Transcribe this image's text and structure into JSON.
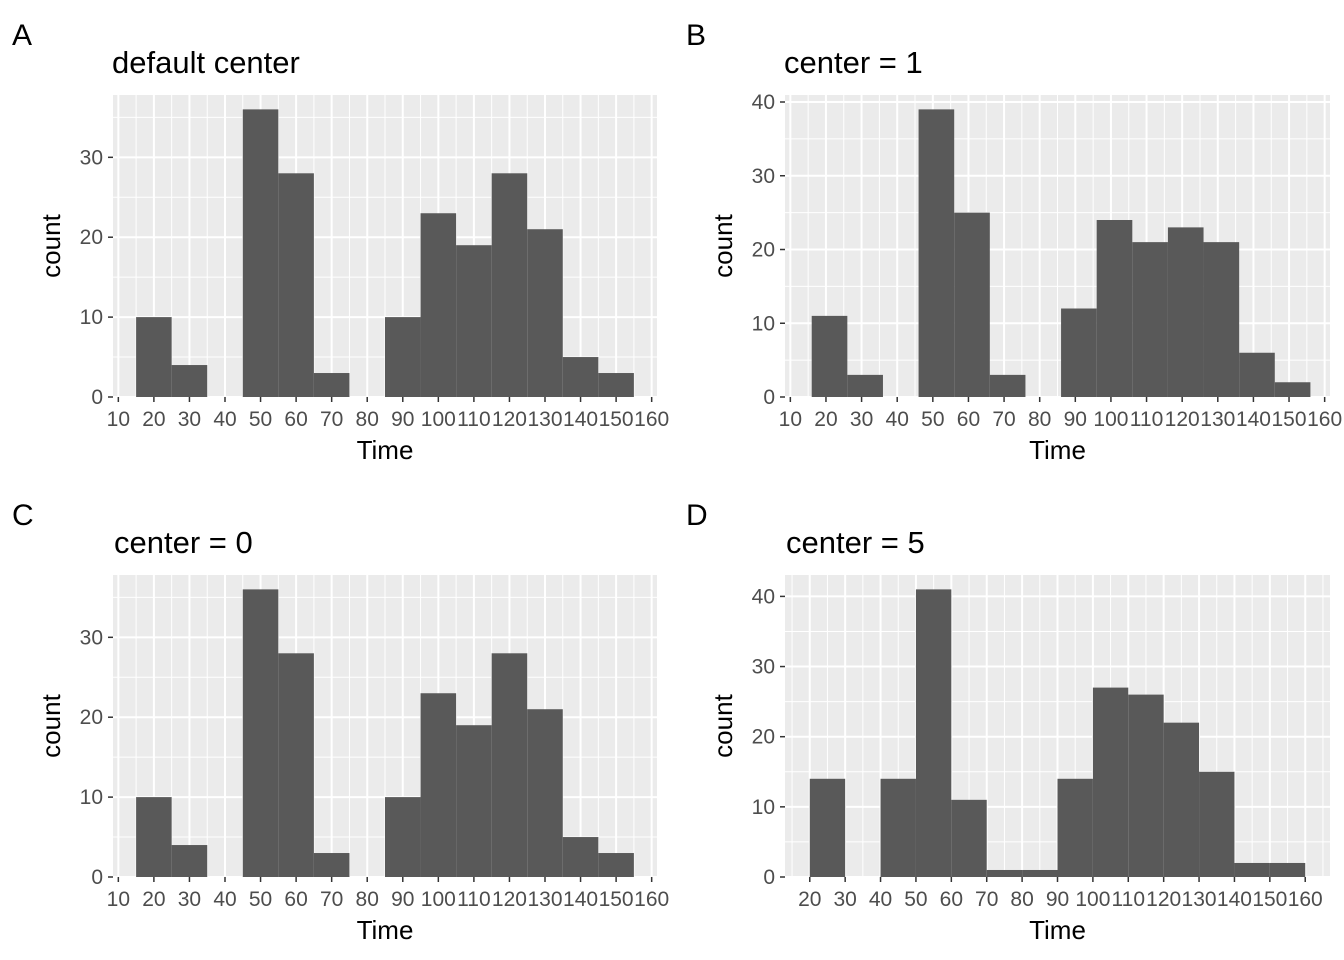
{
  "figure": {
    "panels": [
      {
        "tag": "A",
        "title": "default center"
      },
      {
        "tag": "B",
        "title": "center = 1"
      },
      {
        "tag": "C",
        "title": "center = 0"
      },
      {
        "tag": "D",
        "title": "center = 5"
      }
    ]
  },
  "colors": {
    "panel_background": "#ebebeb",
    "grid": "#ffffff",
    "bar_fill": "#595959",
    "tick_text": "#4d4d4d",
    "tick_mark": "#333333"
  },
  "chart_data": [
    {
      "type": "bar",
      "tag": "A",
      "title": "default center",
      "xlabel": "Time",
      "ylabel": "count",
      "xlim": [
        8.5,
        161.5
      ],
      "ylim": [
        0,
        37.8
      ],
      "x_ticks": [
        10,
        20,
        30,
        40,
        50,
        60,
        70,
        80,
        90,
        100,
        110,
        120,
        130,
        140,
        150,
        160
      ],
      "y_ticks": [
        0,
        10,
        20,
        30
      ],
      "grid": true,
      "bins": [
        {
          "xmin": 15,
          "xmax": 25,
          "count": 10
        },
        {
          "xmin": 25,
          "xmax": 35,
          "count": 4
        },
        {
          "xmin": 45,
          "xmax": 55,
          "count": 36
        },
        {
          "xmin": 55,
          "xmax": 65,
          "count": 28
        },
        {
          "xmin": 65,
          "xmax": 75,
          "count": 3
        },
        {
          "xmin": 85,
          "xmax": 95,
          "count": 10
        },
        {
          "xmin": 95,
          "xmax": 105,
          "count": 23
        },
        {
          "xmin": 105,
          "xmax": 115,
          "count": 19
        },
        {
          "xmin": 115,
          "xmax": 125,
          "count": 28
        },
        {
          "xmin": 125,
          "xmax": 135,
          "count": 21
        },
        {
          "xmin": 135,
          "xmax": 145,
          "count": 5
        },
        {
          "xmin": 145,
          "xmax": 155,
          "count": 3
        }
      ]
    },
    {
      "type": "bar",
      "tag": "B",
      "title": "center = 1",
      "xlabel": "Time",
      "ylabel": "count",
      "xlim": [
        8.5,
        161.5
      ],
      "ylim": [
        0,
        40.95
      ],
      "x_ticks": [
        10,
        20,
        30,
        40,
        50,
        60,
        70,
        80,
        90,
        100,
        110,
        120,
        130,
        140,
        150,
        160
      ],
      "y_ticks": [
        0,
        10,
        20,
        30,
        40
      ],
      "grid": true,
      "bins": [
        {
          "xmin": 16,
          "xmax": 26,
          "count": 11
        },
        {
          "xmin": 26,
          "xmax": 36,
          "count": 3
        },
        {
          "xmin": 46,
          "xmax": 56,
          "count": 39
        },
        {
          "xmin": 56,
          "xmax": 66,
          "count": 25
        },
        {
          "xmin": 66,
          "xmax": 76,
          "count": 3
        },
        {
          "xmin": 86,
          "xmax": 96,
          "count": 12
        },
        {
          "xmin": 96,
          "xmax": 106,
          "count": 24
        },
        {
          "xmin": 106,
          "xmax": 116,
          "count": 21
        },
        {
          "xmin": 116,
          "xmax": 126,
          "count": 23
        },
        {
          "xmin": 126,
          "xmax": 136,
          "count": 21
        },
        {
          "xmin": 136,
          "xmax": 146,
          "count": 6
        },
        {
          "xmin": 146,
          "xmax": 156,
          "count": 2
        }
      ]
    },
    {
      "type": "bar",
      "tag": "C",
      "title": "center = 0",
      "xlabel": "Time",
      "ylabel": "count",
      "xlim": [
        8.5,
        161.5
      ],
      "ylim": [
        0,
        37.8
      ],
      "x_ticks": [
        10,
        20,
        30,
        40,
        50,
        60,
        70,
        80,
        90,
        100,
        110,
        120,
        130,
        140,
        150,
        160
      ],
      "y_ticks": [
        0,
        10,
        20,
        30
      ],
      "grid": true,
      "bins": [
        {
          "xmin": 15,
          "xmax": 25,
          "count": 10
        },
        {
          "xmin": 25,
          "xmax": 35,
          "count": 4
        },
        {
          "xmin": 45,
          "xmax": 55,
          "count": 36
        },
        {
          "xmin": 55,
          "xmax": 65,
          "count": 28
        },
        {
          "xmin": 65,
          "xmax": 75,
          "count": 3
        },
        {
          "xmin": 85,
          "xmax": 95,
          "count": 10
        },
        {
          "xmin": 95,
          "xmax": 105,
          "count": 23
        },
        {
          "xmin": 105,
          "xmax": 115,
          "count": 19
        },
        {
          "xmin": 115,
          "xmax": 125,
          "count": 28
        },
        {
          "xmin": 125,
          "xmax": 135,
          "count": 21
        },
        {
          "xmin": 135,
          "xmax": 145,
          "count": 5
        },
        {
          "xmin": 145,
          "xmax": 155,
          "count": 3
        }
      ]
    },
    {
      "type": "bar",
      "tag": "D",
      "title": "center = 5",
      "xlabel": "Time",
      "ylabel": "count",
      "xlim": [
        13,
        167
      ],
      "ylim": [
        0,
        43.05
      ],
      "x_ticks": [
        20,
        30,
        40,
        50,
        60,
        70,
        80,
        90,
        100,
        110,
        120,
        130,
        140,
        150,
        160
      ],
      "y_ticks": [
        0,
        10,
        20,
        30,
        40
      ],
      "grid": true,
      "bins": [
        {
          "xmin": 20,
          "xmax": 30,
          "count": 14
        },
        {
          "xmin": 40,
          "xmax": 50,
          "count": 14
        },
        {
          "xmin": 50,
          "xmax": 60,
          "count": 41
        },
        {
          "xmin": 60,
          "xmax": 70,
          "count": 11
        },
        {
          "xmin": 70,
          "xmax": 80,
          "count": 1
        },
        {
          "xmin": 80,
          "xmax": 90,
          "count": 1
        },
        {
          "xmin": 90,
          "xmax": 100,
          "count": 14
        },
        {
          "xmin": 100,
          "xmax": 110,
          "count": 27
        },
        {
          "xmin": 110,
          "xmax": 120,
          "count": 26
        },
        {
          "xmin": 120,
          "xmax": 130,
          "count": 22
        },
        {
          "xmin": 130,
          "xmax": 140,
          "count": 15
        },
        {
          "xmin": 140,
          "xmax": 150,
          "count": 2
        },
        {
          "xmin": 150,
          "xmax": 160,
          "count": 2
        }
      ]
    }
  ]
}
